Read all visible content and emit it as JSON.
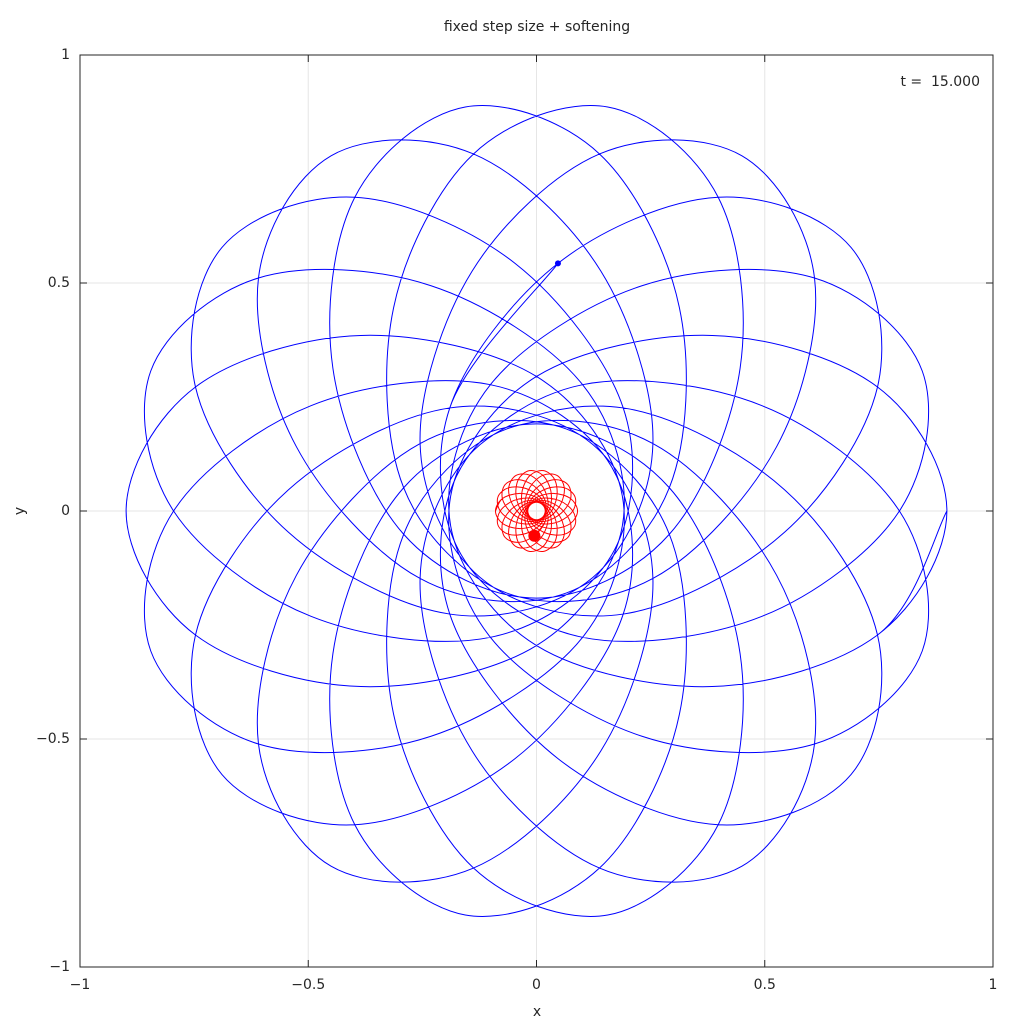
{
  "chart_data": {
    "type": "line",
    "title": "fixed step size + softening",
    "xlabel": "x",
    "ylabel": "y",
    "annotation": "t =  15.000",
    "xlim": [
      -1,
      1
    ],
    "ylim": [
      -1,
      1
    ],
    "xticks": [
      {
        "value": -1,
        "label": "−1"
      },
      {
        "value": -0.5,
        "label": "−0.5"
      },
      0,
      0.5,
      1
    ],
    "yticks": [
      {
        "value": -1,
        "label": "−1"
      },
      {
        "value": -0.5,
        "label": "−0.5"
      },
      0,
      0.5,
      1
    ],
    "grid": true,
    "series": [
      {
        "color": "#0000ff",
        "x": [
          0.899,
          0.747,
          0.385,
          0,
          -0.188,
          -0.101,
          0.231,
          0.609,
          0.845,
          0.795,
          0.494,
          0.101,
          -0.165,
          -0.19,
          0.047,
          0.398,
          0.689,
          0.747,
          0.543,
          0.19,
          -0.123,
          -0.255,
          -0.141,
          0.138,
          0.45,
          0.609,
          0.526,
          0.255,
          -0.065,
          -0.291,
          -0.313,
          -0.138,
          0.156,
          0.398,
          0.446,
          0.291,
          0,
          -0.291,
          -0.446,
          -0.398,
          -0.156,
          0.138,
          0.313,
          0.291,
          0.065,
          -0.255,
          -0.526,
          -0.609,
          -0.45,
          -0.138,
          0.141,
          0.255,
          0.123,
          -0.19,
          -0.543,
          -0.747,
          -0.689,
          -0.398,
          -0.047,
          0.19,
          0.165,
          -0.101,
          -0.494,
          -0.795,
          -0.845,
          -0.609,
          -0.231,
          0.101,
          0.188,
          0,
          -0.385,
          -0.747,
          -0.899,
          -0.747,
          -0.385,
          0,
          0.188,
          0.101,
          -0.231,
          -0.609,
          -0.845,
          -0.795,
          -0.494,
          -0.101,
          0.165,
          0.19,
          -0.047,
          -0.398,
          -0.689,
          -0.747,
          -0.543,
          -0.19,
          0.123,
          0.255,
          0.141,
          -0.138,
          -0.45,
          -0.609,
          -0.526,
          -0.255,
          0.065,
          0.291,
          0.313,
          0.138,
          -0.156,
          -0.398,
          -0.446,
          -0.291,
          0,
          0.291,
          0.446,
          0.398,
          0.156,
          -0.138,
          -0.313,
          -0.291,
          -0.065,
          0.255,
          0.526,
          0.609,
          0.45,
          0.138,
          -0.141,
          -0.255,
          -0.123,
          0.19,
          0.543,
          0.747,
          0.689,
          0.398,
          0.047,
          -0.19,
          -0.165,
          0.101,
          0.494,
          0.795,
          0.845,
          0.609,
          0.231,
          -0.101,
          -0.188,
          0,
          0.385,
          0.747,
          0.899,
          0.747,
          0.385,
          0,
          -0.188,
          -0.101,
          0.231,
          0.609,
          0.845,
          0.795,
          0.494,
          0.101,
          -0.165,
          -0.19,
          0.047
        ],
        "values": [
          0,
          -0.272,
          -0.385,
          -0.295,
          -0.033,
          0.277,
          0.494,
          0.511,
          0.307,
          0,
          -0.231,
          -0.277,
          -0.096,
          0.226,
          0.543,
          0.688,
          0.578,
          0.272,
          -0.047,
          -0.226,
          -0.146,
          0.148,
          0.526,
          0.783,
          0.779,
          0.511,
          0.141,
          -0.148,
          -0.18,
          0.051,
          0.446,
          0.783,
          0.886,
          0.688,
          0.313,
          -0.051,
          -0.191,
          -0.051,
          0.313,
          0.688,
          0.886,
          0.783,
          0.446,
          0.051,
          -0.18,
          -0.148,
          0.141,
          0.511,
          0.779,
          0.783,
          0.526,
          0.148,
          -0.146,
          -0.226,
          -0.047,
          0.272,
          0.578,
          0.688,
          0.543,
          0.226,
          -0.096,
          -0.277,
          -0.231,
          0,
          0.307,
          0.511,
          0.494,
          0.277,
          -0.033,
          -0.295,
          -0.385,
          -0.272,
          0,
          0.272,
          0.385,
          0.295,
          0.033,
          -0.277,
          -0.494,
          -0.511,
          -0.307,
          0,
          0.231,
          0.277,
          0.096,
          -0.226,
          -0.543,
          -0.688,
          -0.578,
          -0.272,
          0.047,
          0.226,
          0.146,
          -0.148,
          -0.526,
          -0.783,
          -0.779,
          -0.511,
          -0.141,
          0.148,
          0.18,
          -0.051,
          -0.446,
          -0.783,
          -0.886,
          -0.688,
          -0.313,
          0.051,
          0.191,
          0.051,
          -0.313,
          -0.688,
          -0.886,
          -0.783,
          -0.446,
          -0.051,
          0.18,
          0.148,
          -0.141,
          -0.511,
          -0.779,
          -0.783,
          -0.526,
          -0.148,
          0.146,
          0.226,
          0.047,
          -0.272,
          -0.578,
          -0.688,
          -0.543,
          -0.226,
          0.096,
          0.277,
          0.231,
          0,
          -0.307,
          -0.511,
          -0.494,
          -0.277,
          0.033,
          0.295,
          0.385,
          0.272,
          0,
          -0.272,
          -0.385,
          -0.295,
          -0.033,
          0.277,
          0.494,
          0.511,
          0.307,
          0,
          -0.231,
          -0.277,
          -0.096,
          0.226,
          0.543
        ]
      },
      {
        "color": "#ff0000",
        "x": [
          -0.0899,
          -0.0747,
          -0.0385,
          0,
          0.0188,
          0.0101,
          -0.0231,
          -0.0609,
          -0.0845,
          -0.0795,
          -0.0494,
          -0.0101,
          0.0165,
          0.019,
          -0.0047,
          -0.0398,
          -0.0689,
          -0.0747,
          -0.0543,
          -0.019,
          0.0123,
          0.0255,
          0.0141,
          -0.0138,
          -0.045,
          -0.0609,
          -0.0526,
          -0.0255,
          0.0065,
          0.0291,
          0.0313,
          0.0138,
          -0.0156,
          -0.0398,
          -0.0446,
          -0.0291,
          0,
          0.0291,
          0.0446,
          0.0398,
          0.0156,
          -0.0138,
          -0.0313,
          -0.0291,
          -0.0065,
          0.0255,
          0.0526,
          0.0609,
          0.045,
          0.0138,
          -0.0141,
          -0.0255,
          -0.0123,
          0.019,
          0.0543,
          0.0747,
          0.0689,
          0.0398,
          0.0047,
          -0.019,
          -0.0165,
          0.0101,
          0.0494,
          0.0795,
          0.0845,
          0.0609,
          0.0231,
          -0.0101,
          -0.0188,
          0,
          0.0385,
          0.0747,
          0.0899,
          0.0747,
          0.0385,
          0,
          -0.0188,
          -0.0101,
          0.0231,
          0.0609,
          0.0845,
          0.0795,
          0.0494,
          0.0101,
          -0.0165,
          -0.019,
          0.0047,
          0.0398,
          0.0689,
          0.0747,
          0.0543,
          0.019,
          -0.0123,
          -0.0255,
          -0.0141,
          0.0138,
          0.045,
          0.0609,
          0.0526,
          0.0255,
          -0.0065,
          -0.0291,
          -0.0313,
          -0.0138,
          0.0156,
          0.0398,
          0.0446,
          0.0291,
          0,
          -0.0291,
          -0.0446,
          -0.0398,
          -0.0156,
          0.0138,
          0.0313,
          0.0291,
          0.0065,
          -0.0255,
          -0.0526,
          -0.0609,
          -0.045,
          -0.0138,
          0.0141,
          0.0255,
          0.0123,
          -0.019,
          -0.0543,
          -0.0747,
          -0.0689,
          -0.0398,
          -0.0047,
          0.019,
          0.0165,
          -0.0101,
          -0.0494,
          -0.0795,
          -0.0845,
          -0.0609,
          -0.0231,
          0.0101,
          0.0188,
          0,
          -0.0385,
          -0.0747,
          -0.0899,
          -0.0747,
          -0.0385,
          0,
          0.0188,
          0.0101,
          -0.0231,
          -0.0609,
          -0.0845,
          -0.0795,
          -0.0494,
          -0.0101,
          0.0165,
          0.019,
          -0.0047
        ],
        "values": [
          0,
          0.0272,
          0.0385,
          0.0295,
          0.0033,
          -0.0277,
          -0.0494,
          -0.0511,
          -0.0307,
          0,
          0.0231,
          0.0277,
          0.0096,
          -0.0226,
          -0.0543,
          -0.0688,
          -0.0578,
          -0.0272,
          0.0047,
          0.0226,
          0.0146,
          -0.0148,
          -0.0526,
          -0.0783,
          -0.0779,
          -0.0511,
          -0.0141,
          0.0148,
          0.018,
          -0.0051,
          -0.0446,
          -0.0783,
          -0.0886,
          -0.0688,
          -0.0313,
          0.0051,
          0.0191,
          0.0051,
          -0.0313,
          -0.0688,
          -0.0886,
          -0.0783,
          -0.0446,
          -0.0051,
          0.018,
          0.0148,
          -0.0141,
          -0.0511,
          -0.0779,
          -0.0783,
          -0.0526,
          -0.0148,
          0.0146,
          0.0226,
          0.0047,
          -0.0272,
          -0.0578,
          -0.0688,
          -0.0543,
          -0.0226,
          0.0096,
          0.0277,
          0.0231,
          0,
          -0.0307,
          -0.0511,
          -0.0494,
          -0.0277,
          0.0033,
          0.0295,
          0.0385,
          0.0272,
          0,
          -0.0272,
          -0.0385,
          -0.0295,
          -0.0033,
          0.0277,
          0.0494,
          0.0511,
          0.0307,
          0,
          -0.0231,
          -0.0277,
          -0.0096,
          0.0226,
          0.0543,
          0.0688,
          0.0578,
          0.0272,
          -0.0047,
          -0.0226,
          -0.0146,
          0.0148,
          0.0526,
          0.0783,
          0.0779,
          0.0511,
          0.0141,
          -0.0148,
          -0.018,
          0.0051,
          0.0446,
          0.0783,
          0.0886,
          0.0688,
          0.0313,
          -0.0051,
          -0.0191,
          -0.0051,
          0.0313,
          0.0688,
          0.0886,
          0.0783,
          0.0446,
          0.0051,
          -0.018,
          -0.0148,
          0.0141,
          0.0511,
          0.0779,
          0.0783,
          0.0526,
          0.0148,
          -0.0146,
          -0.0226,
          -0.0047,
          0.0272,
          0.0578,
          0.0688,
          0.0543,
          0.0226,
          -0.0096,
          -0.0277,
          -0.0231,
          0,
          0.0307,
          0.0511,
          0.0494,
          0.0277,
          -0.0033,
          -0.0295,
          -0.0385,
          -0.0272,
          0,
          0.0272,
          0.0385,
          0.0295,
          0.0033,
          -0.0277,
          -0.0494,
          -0.0511,
          -0.0307,
          0,
          0.0231,
          0.0277,
          0.0096,
          -0.0226,
          -0.0543
        ]
      }
    ]
  }
}
